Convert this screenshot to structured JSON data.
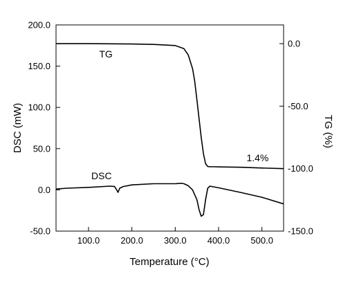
{
  "chart_data": {
    "type": "line",
    "xlabel": "Temperature (°C)",
    "ylabel_left": "DSC (mW)",
    "ylabel_right": "TG (%)",
    "xlim": [
      25,
      550
    ],
    "ylim_left": [
      -50,
      200
    ],
    "ylim_right": [
      -150,
      15
    ],
    "x_ticks": [
      100,
      200,
      300,
      400,
      500
    ],
    "x_tick_labels": [
      "100.0",
      "200.0",
      "300.0",
      "400.0",
      "500.0"
    ],
    "y_left_ticks": [
      -50,
      0,
      50,
      100,
      150,
      200
    ],
    "y_left_tick_labels": [
      "-50.0",
      "0.0",
      "50.0",
      "100.0",
      "150.0",
      "200.0"
    ],
    "y_right_ticks": [
      0,
      -50,
      -100,
      -150
    ],
    "y_right_tick_labels": [
      "0.0",
      "-50.0",
      "-100.0",
      "-150.0"
    ],
    "grid": false,
    "annotations": [
      {
        "text": "1.4%",
        "x": 490,
        "axis": "right",
        "y": -94
      }
    ],
    "series": [
      {
        "name": "TG",
        "axis": "right",
        "label_at": {
          "x": 140,
          "y": -11
        },
        "x": [
          25,
          100,
          200,
          250,
          300,
          320,
          330,
          340,
          345,
          350,
          355,
          360,
          365,
          370,
          375,
          380,
          390,
          400,
          450,
          500,
          550
        ],
        "y": [
          0.0,
          0.0,
          -0.3,
          -0.6,
          -1.5,
          -4.0,
          -9.0,
          -20.0,
          -30.0,
          -45.0,
          -60.0,
          -75.0,
          -88.0,
          -96.0,
          -98.3,
          -98.5,
          -98.5,
          -98.6,
          -98.9,
          -99.5,
          -100.0
        ]
      },
      {
        "name": "DSC",
        "axis": "left",
        "label_at": {
          "x": 130,
          "y": 13
        },
        "x": [
          25,
          50,
          100,
          150,
          160,
          165,
          168,
          172,
          180,
          200,
          250,
          300,
          315,
          320,
          330,
          340,
          350,
          355,
          360,
          365,
          370,
          375,
          380,
          385,
          400,
          450,
          500,
          550
        ],
        "y": [
          1.0,
          2.0,
          3.0,
          4.5,
          4.0,
          0.0,
          -3.0,
          2.0,
          4.0,
          6.0,
          7.5,
          7.5,
          8.0,
          7.5,
          5.0,
          0.0,
          -12.0,
          -24.0,
          -32.0,
          -30.0,
          -12.0,
          2.0,
          4.5,
          4.0,
          2.5,
          -3.0,
          -9.0,
          -17.0
        ]
      }
    ]
  }
}
